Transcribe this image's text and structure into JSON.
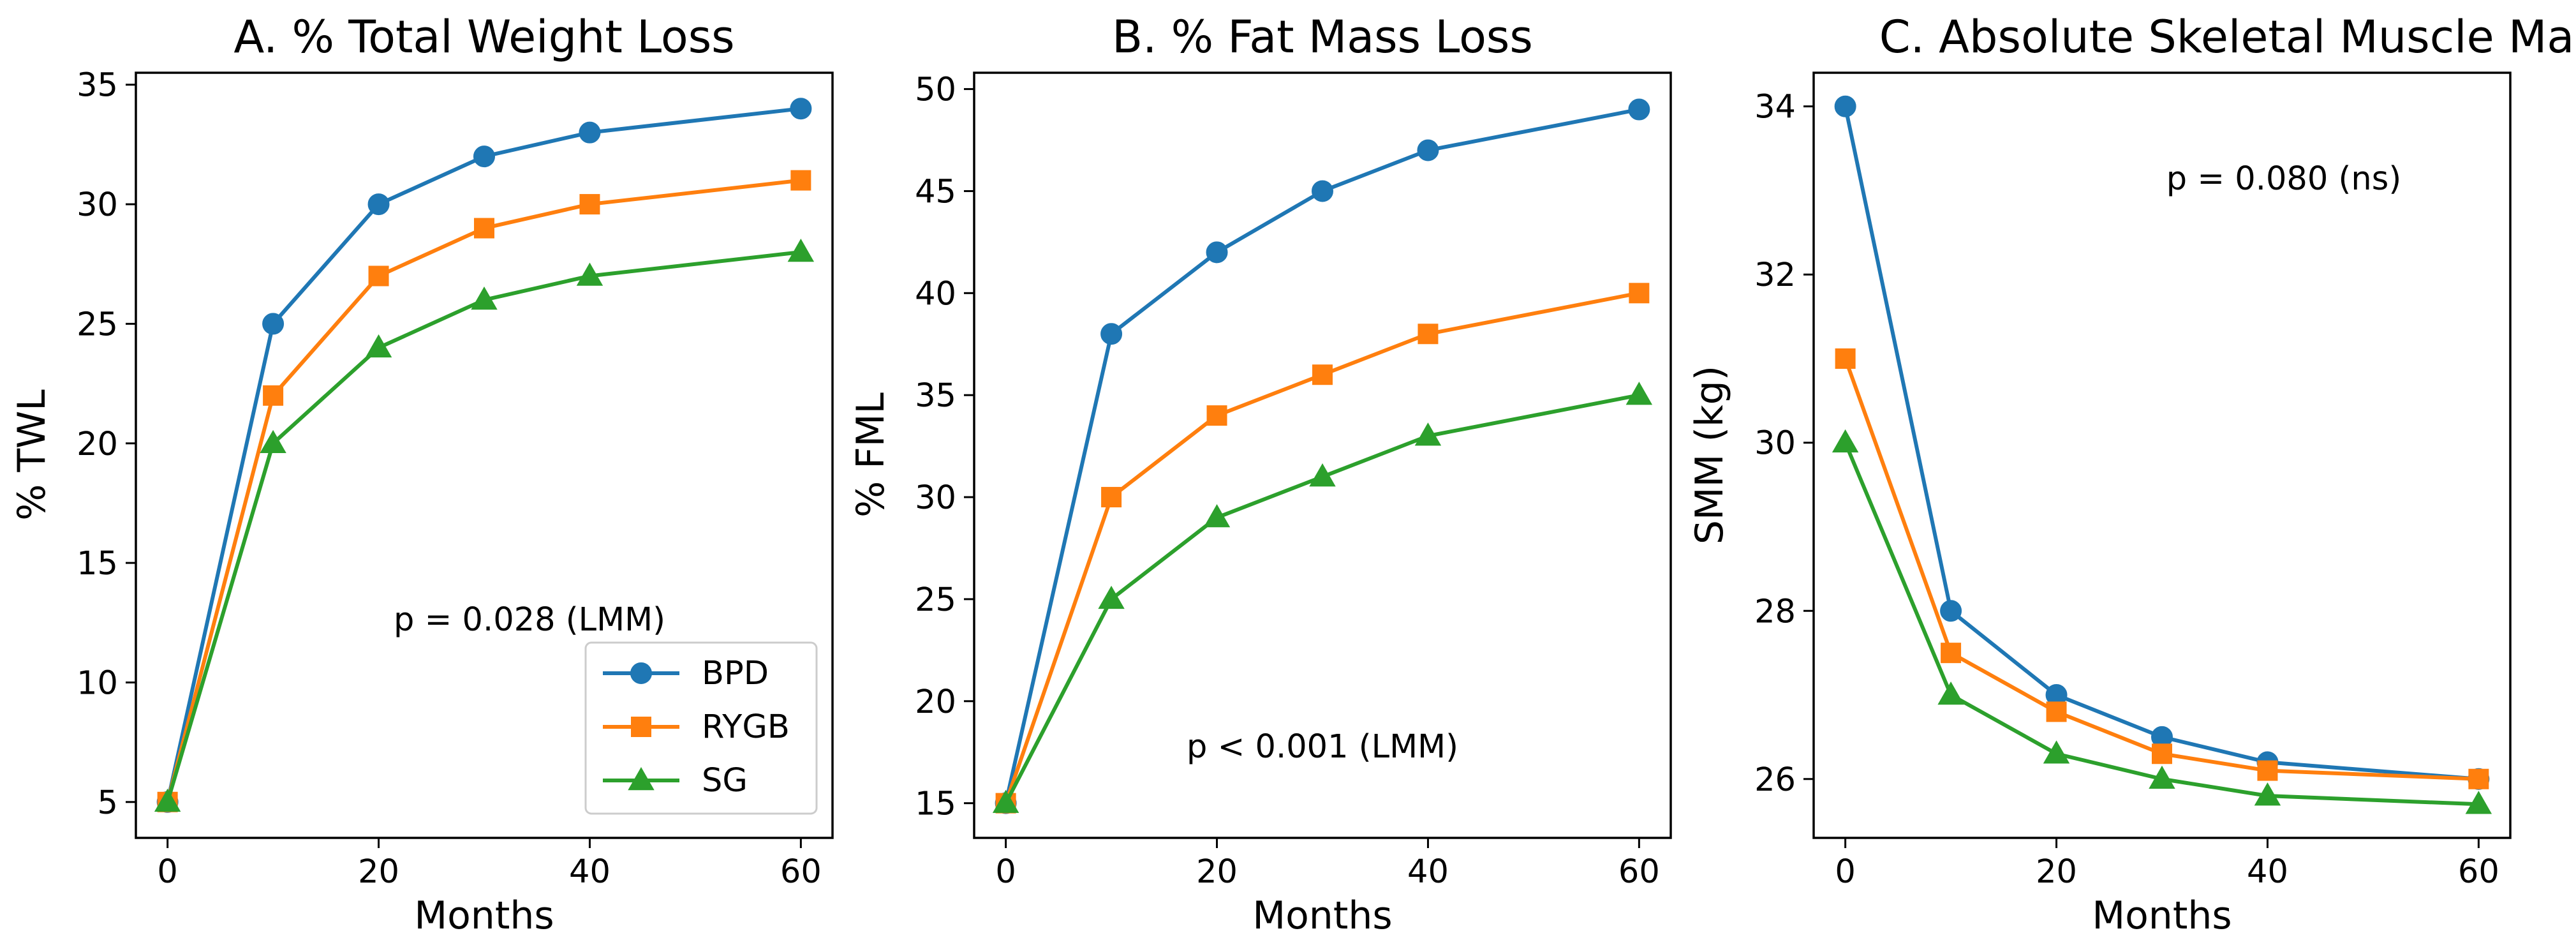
{
  "colors": {
    "BPD": "#1f77b4",
    "RYGB": "#ff7f0e",
    "SG": "#2ca02c"
  },
  "chart_data": [
    {
      "type": "line",
      "title": "A. % Total Weight Loss",
      "xlabel": "Months",
      "ylabel": "% TWL",
      "xlim": [
        -3,
        63
      ],
      "ylim": [
        3.5,
        35.5
      ],
      "xticks": [
        0,
        20,
        40,
        60
      ],
      "yticks": [
        5,
        10,
        15,
        20,
        25,
        30,
        35
      ],
      "x": [
        0,
        10,
        20,
        30,
        40,
        60
      ],
      "series": [
        {
          "name": "BPD",
          "marker": "circle",
          "values": [
            5,
            25,
            30,
            32,
            33,
            34
          ]
        },
        {
          "name": "RYGB",
          "marker": "square",
          "values": [
            5,
            22,
            27,
            29,
            30,
            31
          ]
        },
        {
          "name": "SG",
          "marker": "triangle",
          "values": [
            5,
            20,
            24,
            26,
            27,
            28
          ]
        }
      ],
      "annotation": "p = 0.028 (LMM)",
      "legend": {
        "position": "lower-right",
        "entries": [
          "BPD",
          "RYGB",
          "SG"
        ]
      }
    },
    {
      "type": "line",
      "title": "B. % Fat Mass Loss",
      "xlabel": "Months",
      "ylabel": "% FML",
      "xlim": [
        -3,
        63
      ],
      "ylim": [
        13.3,
        50.8
      ],
      "xticks": [
        0,
        20,
        40,
        60
      ],
      "yticks": [
        15,
        20,
        25,
        30,
        35,
        40,
        45,
        50
      ],
      "x": [
        0,
        10,
        20,
        30,
        40,
        60
      ],
      "series": [
        {
          "name": "BPD",
          "marker": "circle",
          "values": [
            15,
            38,
            42,
            45,
            47,
            49
          ]
        },
        {
          "name": "RYGB",
          "marker": "square",
          "values": [
            15,
            30,
            34,
            36,
            38,
            40
          ]
        },
        {
          "name": "SG",
          "marker": "triangle",
          "values": [
            15,
            25,
            29,
            31,
            33,
            35
          ]
        }
      ],
      "annotation": "p < 0.001 (LMM)"
    },
    {
      "type": "line",
      "title": "C. Absolute Skeletal Muscle Mass",
      "xlabel": "Months",
      "ylabel": "SMM (kg)",
      "xlim": [
        -3,
        63
      ],
      "ylim": [
        25.3,
        34.4
      ],
      "xticks": [
        0,
        20,
        40,
        60
      ],
      "yticks": [
        26,
        28,
        30,
        32,
        34
      ],
      "x": [
        0,
        10,
        20,
        30,
        40,
        60
      ],
      "series": [
        {
          "name": "BPD",
          "marker": "circle",
          "values": [
            34,
            28,
            27,
            26.5,
            26.2,
            26
          ]
        },
        {
          "name": "RYGB",
          "marker": "square",
          "values": [
            31,
            27.5,
            26.8,
            26.3,
            26.1,
            26
          ]
        },
        {
          "name": "SG",
          "marker": "triangle",
          "values": [
            30,
            27,
            26.3,
            26,
            25.8,
            25.7
          ]
        }
      ],
      "annotation": "p = 0.080 (ns)"
    }
  ]
}
